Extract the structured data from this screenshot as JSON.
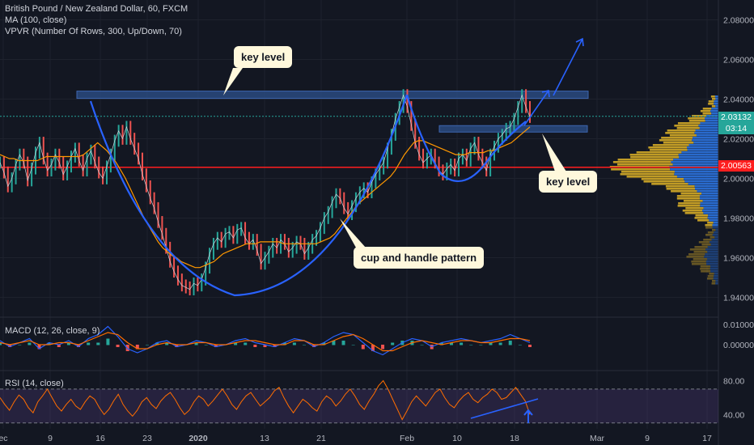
{
  "header": {
    "symbol": "British Pound / New Zealand Dollar, 60, FXCM",
    "ma": "MA (100, close)",
    "vpvr": "VPVR (Number Of Rows, 300, Up/Down, 70)"
  },
  "panes": {
    "macd_label": "MACD (12, 26, close, 9)",
    "rsi_label": "RSI (14, close)"
  },
  "annotations": {
    "key_level_top": "key level",
    "key_level_right": "key level",
    "pattern": "cup and handle pattern"
  },
  "price_tags": {
    "current": "2.03132",
    "countdown": "03:14",
    "red_level": "2.00563"
  },
  "colors": {
    "background": "#131722",
    "zone": "#2a4a7f",
    "cup": "#2962ff",
    "ma": "#ff9800",
    "red_line": "#ff1e1e",
    "rsi": "#ff6d00",
    "vp_gold": "#c9a227",
    "vp_blue": "#2a6fd6"
  },
  "chart_data": [
    {
      "type": "line",
      "title": "British Pound / New Zealand Dollar, 60, FXCM",
      "ylim": [
        1.93,
        2.09
      ],
      "y_ticks": [
        "2.08000",
        "2.06000",
        "2.04000",
        "2.02000",
        "2.00000",
        "1.98000",
        "1.96000",
        "1.94000"
      ],
      "x_ticks": [
        "ec",
        "9",
        "16",
        "23",
        "2020",
        "13",
        "21",
        "Feb",
        "10",
        "18",
        "Mar",
        "9",
        "17"
      ],
      "series": [
        {
          "values": [
            2.008,
            2.003,
            1.996,
            2.0,
            2.007,
            2.012,
            2.008,
            1.999,
            2.005,
            2.013,
            2.018,
            2.01,
            2.004,
            2.007,
            2.012,
            2.008,
            2.002,
            2.006,
            2.011,
            2.015,
            2.009,
            2.004,
            2.01,
            2.014,
            2.008,
            2.003,
            2.0,
            2.006,
            2.012,
            2.019,
            2.024,
            2.02,
            2.026,
            2.02,
            2.015,
            2.01,
            2.002,
            1.996,
            1.99,
            1.985,
            1.978,
            1.972,
            1.965,
            1.958,
            1.953,
            1.949,
            1.946,
            1.945,
            1.944,
            1.947,
            1.946,
            1.949,
            1.955,
            1.962,
            1.967,
            1.97,
            1.968,
            1.972,
            1.973,
            1.97,
            1.974,
            1.975,
            1.97,
            1.967,
            1.969,
            1.964,
            1.957,
            1.96,
            1.963,
            1.967,
            1.965,
            1.969,
            1.967,
            1.963,
            1.965,
            1.968,
            1.967,
            1.962,
            1.965,
            1.969,
            1.971,
            1.975,
            1.98,
            1.983,
            1.988,
            1.992,
            1.99,
            1.985,
            1.982,
            1.986,
            1.99,
            1.993,
            1.995,
            1.993,
            1.998,
            2.002,
            2.005,
            2.008,
            2.015,
            2.022,
            2.03,
            2.036,
            2.042,
            2.036,
            2.027,
            2.018,
            2.012,
            2.008,
            2.01,
            2.012,
            2.008,
            2.004,
            2.002,
            2.005,
            2.007,
            2.004,
            2.01,
            2.012,
            2.009,
            2.015,
            2.018,
            2.012,
            2.008,
            2.004,
            2.012,
            2.016,
            2.02,
            2.022,
            2.025,
            2.026,
            2.03,
            2.036,
            2.042,
            2.036,
            2.031
          ]
        },
        {
          "name": "MA (100, close)",
          "values": [
            2.012,
            2.011,
            2.01,
            2.01,
            2.009,
            2.009,
            2.009,
            2.009,
            2.009,
            2.01,
            2.011,
            2.011,
            2.011,
            2.011,
            2.011,
            2.011,
            2.011,
            2.011,
            2.012,
            2.014,
            2.016,
            2.018,
            2.016,
            2.014,
            2.011,
            2.008,
            2.004,
            2.0,
            1.995,
            1.99,
            1.985,
            1.98,
            1.976,
            1.972,
            1.968,
            1.965,
            1.963,
            1.961,
            1.96,
            1.958,
            1.957,
            1.956,
            1.955,
            1.955,
            1.956,
            1.957,
            1.958,
            1.96,
            1.962,
            1.963,
            1.964,
            1.965,
            1.966,
            1.967,
            1.967,
            1.967,
            1.968,
            1.968,
            1.968,
            1.968,
            1.968,
            1.967,
            1.967,
            1.967,
            1.967,
            1.967,
            1.967,
            1.967,
            1.967,
            1.968,
            1.969,
            1.97,
            1.972,
            1.975,
            1.978,
            1.981,
            1.984,
            1.987,
            1.989,
            1.991,
            1.993,
            1.995,
            1.997,
            1.999,
            2.001,
            2.004,
            2.008,
            2.012,
            2.015,
            2.018,
            2.019,
            2.019,
            2.018,
            2.017,
            2.016,
            2.015,
            2.014,
            2.013,
            2.012,
            2.012,
            2.012,
            2.013,
            2.013,
            2.013,
            2.013,
            2.014,
            2.014,
            2.015,
            2.016,
            2.017,
            2.018,
            2.02,
            2.022,
            2.024,
            2.026
          ]
        }
      ],
      "levels": [
        {
          "kind": "resistance zone",
          "value": 2.042
        },
        {
          "kind": "handle zone",
          "value": 2.025
        },
        {
          "kind": "horizontal line",
          "value": 2.00563
        },
        {
          "kind": "current price",
          "value": 2.03132
        }
      ]
    },
    {
      "type": "line",
      "title": "MACD (12, 26, close, 9)",
      "ylim": [
        -0.012,
        0.012
      ],
      "y_ticks": [
        "0.01000",
        "0.00000"
      ],
      "series": [
        {
          "values": [
            0.002,
            -0.001,
            0.001,
            0.003,
            -0.002,
            0.001,
            0.0,
            0.002,
            -0.001,
            0.003,
            0.005,
            0.009,
            0.004,
            -0.002,
            -0.004,
            -0.002,
            0.001,
            0.002,
            -0.001,
            0.0,
            0.002,
            0.001,
            -0.001,
            0.0,
            0.002,
            0.003,
            0.001,
            0.0,
            -0.001,
            0.001,
            0.003,
            0.002,
            -0.001,
            0.001,
            0.004,
            0.006,
            0.005,
            0.001,
            -0.003,
            -0.005,
            -0.002,
            0.001,
            0.003,
            0.002,
            -0.001,
            0.001,
            0.002,
            0.003,
            0.002,
            0.001,
            0.002,
            0.003,
            0.005,
            0.003,
            0.001
          ]
        },
        {
          "values": [
            0.001,
            0.0,
            0.001,
            0.002,
            0.0,
            0.0,
            0.001,
            0.001,
            0.0,
            0.002,
            0.004,
            0.006,
            0.005,
            0.001,
            -0.002,
            -0.002,
            0.0,
            0.001,
            0.0,
            0.0,
            0.001,
            0.001,
            0.0,
            0.0,
            0.001,
            0.002,
            0.002,
            0.001,
            0.0,
            0.0,
            0.002,
            0.002,
            0.0,
            0.0,
            0.002,
            0.004,
            0.005,
            0.003,
            0.0,
            -0.003,
            -0.003,
            -0.001,
            0.001,
            0.002,
            0.001,
            0.0,
            0.001,
            0.002,
            0.002,
            0.001,
            0.001,
            0.002,
            0.003,
            0.003,
            0.002
          ]
        }
      ]
    },
    {
      "type": "line",
      "title": "RSI (14, close)",
      "ylim": [
        25,
        90
      ],
      "y_ticks": [
        "80.00",
        "40.00"
      ],
      "band": [
        30,
        70
      ],
      "series": [
        {
          "values": [
            60,
            52,
            45,
            55,
            63,
            58,
            48,
            42,
            55,
            62,
            70,
            60,
            50,
            44,
            52,
            58,
            50,
            46,
            55,
            62,
            58,
            48,
            40,
            46,
            56,
            64,
            52,
            44,
            38,
            45,
            55,
            60,
            52,
            47,
            56,
            62,
            66,
            58,
            48,
            40,
            45,
            55,
            62,
            58,
            50,
            56,
            63,
            70,
            62,
            52,
            46,
            55,
            62,
            66,
            58,
            50,
            55,
            60,
            68,
            72,
            60,
            50,
            42,
            50,
            58,
            54,
            48,
            44,
            55,
            62,
            58,
            50,
            56,
            64,
            70,
            62,
            52,
            46,
            56,
            64,
            74,
            80,
            70,
            58,
            46,
            34,
            44,
            55,
            62,
            56,
            50,
            58,
            66,
            70,
            60,
            52,
            48,
            56,
            62,
            66,
            58,
            54,
            60,
            64,
            70,
            66,
            58,
            60,
            66,
            72,
            64,
            56,
            40
          ]
        }
      ]
    }
  ]
}
